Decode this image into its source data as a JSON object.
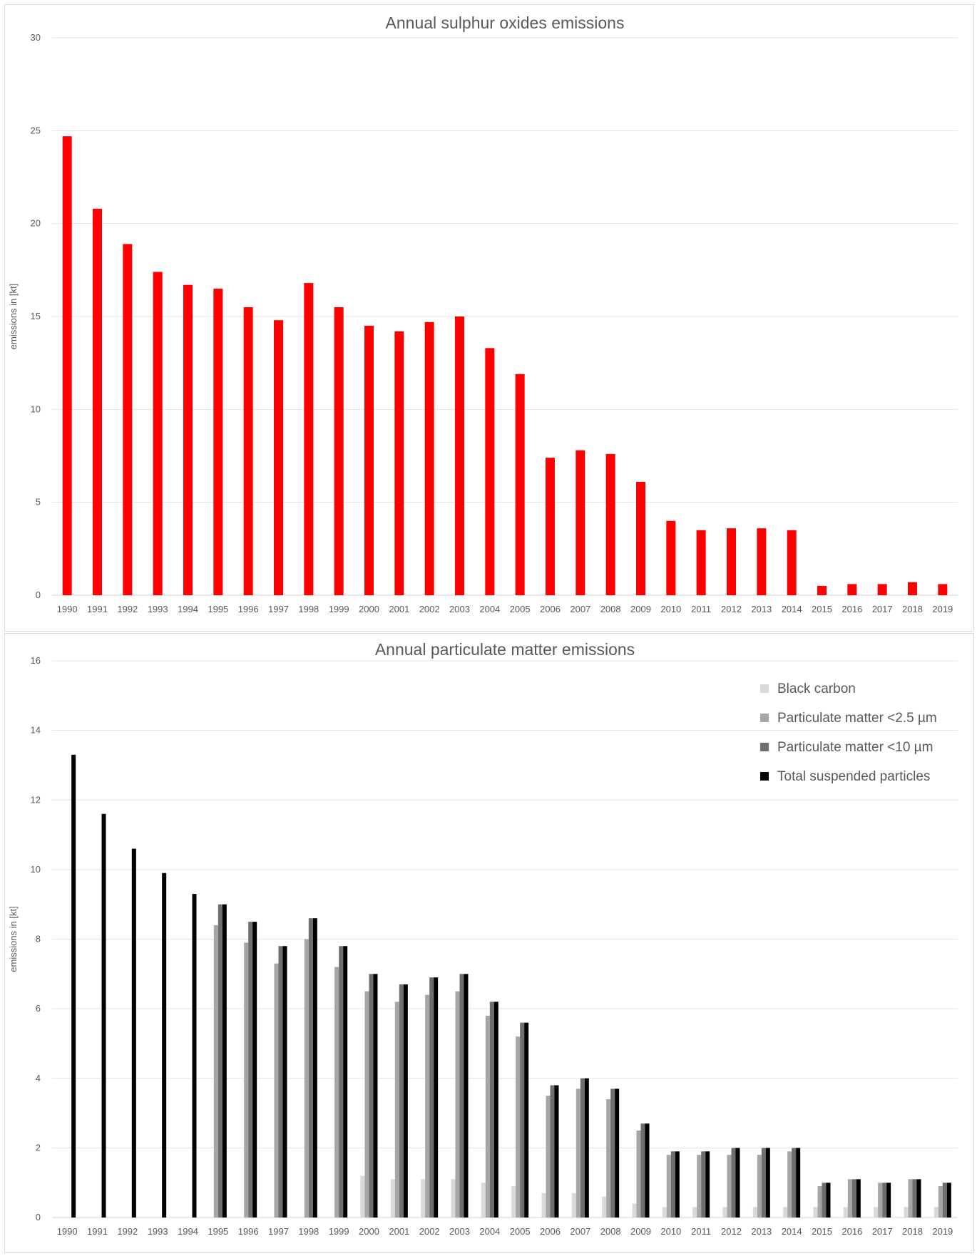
{
  "chart_data": [
    {
      "type": "bar",
      "title": "Annual sulphur oxides emissions",
      "xlabel": "",
      "ylabel": "emissions in [kt]",
      "ylim": [
        0,
        30
      ],
      "yticks": [
        0,
        5,
        10,
        15,
        20,
        25,
        30
      ],
      "grid": true,
      "legend": "none",
      "categories": [
        "1990",
        "1991",
        "1992",
        "1993",
        "1994",
        "1995",
        "1996",
        "1997",
        "1998",
        "1999",
        "2000",
        "2001",
        "2002",
        "2003",
        "2004",
        "2005",
        "2006",
        "2007",
        "2008",
        "2009",
        "2010",
        "2011",
        "2012",
        "2013",
        "2014",
        "2015",
        "2016",
        "2017",
        "2018",
        "2019"
      ],
      "series": [
        {
          "color": "#ff0000",
          "values": [
            24.7,
            20.8,
            18.9,
            17.4,
            16.7,
            16.5,
            15.5,
            14.8,
            16.8,
            15.5,
            14.5,
            14.2,
            14.7,
            15.0,
            13.3,
            11.9,
            7.4,
            7.8,
            7.6,
            6.1,
            4.0,
            3.5,
            3.6,
            3.6,
            3.5,
            0.5,
            0.6,
            0.6,
            0.7,
            0.6
          ]
        }
      ]
    },
    {
      "type": "bar",
      "title": "Annual particulate matter emissions",
      "xlabel": "",
      "ylabel": "emissions in [kt]",
      "ylim": [
        0,
        16
      ],
      "yticks": [
        0,
        2,
        4,
        6,
        8,
        10,
        12,
        14,
        16
      ],
      "grid": true,
      "legend": "top-right",
      "categories": [
        "1990",
        "1991",
        "1992",
        "1993",
        "1994",
        "1995",
        "1996",
        "1997",
        "1998",
        "1999",
        "2000",
        "2001",
        "2002",
        "2003",
        "2004",
        "2005",
        "2006",
        "2007",
        "2008",
        "2009",
        "2010",
        "2011",
        "2012",
        "2013",
        "2014",
        "2015",
        "2016",
        "2017",
        "2018",
        "2019"
      ],
      "series": [
        {
          "name": "Black carbon",
          "color": "#d9d9d9",
          "values": [
            null,
            null,
            null,
            null,
            null,
            null,
            null,
            null,
            null,
            null,
            1.2,
            1.1,
            1.1,
            1.1,
            1.0,
            0.9,
            0.7,
            0.7,
            0.6,
            0.4,
            0.3,
            0.3,
            0.3,
            0.3,
            0.3,
            0.3,
            0.3,
            0.3,
            0.3,
            0.3
          ]
        },
        {
          "name": "Particulate matter <2.5 µm",
          "color": "#a6a6a6",
          "values": [
            null,
            null,
            null,
            null,
            null,
            8.4,
            7.9,
            7.3,
            8.0,
            7.2,
            6.5,
            6.2,
            6.4,
            6.5,
            5.8,
            5.2,
            3.5,
            3.7,
            3.4,
            2.5,
            1.8,
            1.8,
            1.8,
            1.8,
            1.9,
            0.9,
            1.1,
            1.0,
            1.1,
            0.9
          ]
        },
        {
          "name": "Particulate matter <10 µm",
          "color": "#6e6e6e",
          "values": [
            null,
            null,
            null,
            null,
            null,
            9.0,
            8.5,
            7.8,
            8.6,
            7.8,
            7.0,
            6.7,
            6.9,
            7.0,
            6.2,
            5.6,
            3.8,
            4.0,
            3.7,
            2.7,
            1.9,
            1.9,
            2.0,
            2.0,
            2.0,
            1.0,
            1.1,
            1.0,
            1.1,
            1.0
          ]
        },
        {
          "name": "Total suspended particles",
          "color": "#000000",
          "values": [
            13.3,
            11.6,
            10.6,
            9.9,
            9.3,
            9.0,
            8.5,
            7.8,
            8.6,
            7.8,
            7.0,
            6.7,
            6.9,
            7.0,
            6.2,
            5.6,
            3.8,
            4.0,
            3.7,
            2.7,
            1.9,
            1.9,
            2.0,
            2.0,
            2.0,
            1.0,
            1.1,
            1.0,
            1.1,
            1.0
          ]
        }
      ]
    }
  ]
}
